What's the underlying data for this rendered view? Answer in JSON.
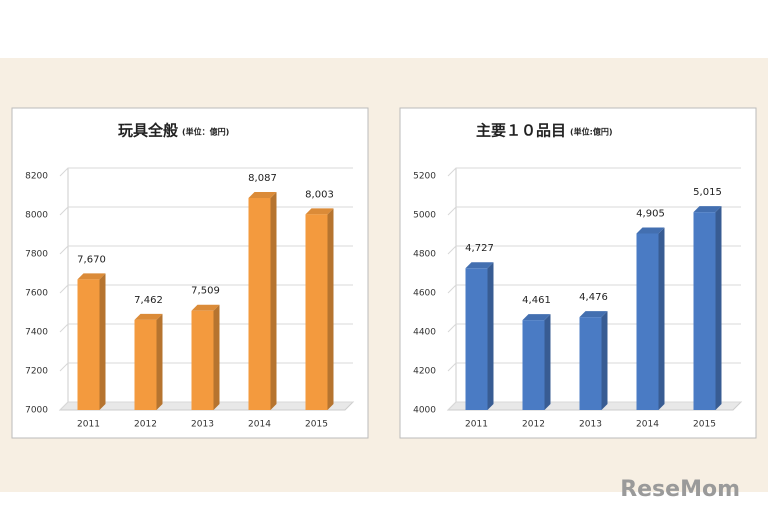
{
  "chart_data": [
    {
      "type": "bar",
      "title": "玩具全般",
      "subtitle": "(単位：億円)",
      "categories": [
        "2011",
        "2012",
        "2013",
        "2014",
        "2015"
      ],
      "values": [
        7670,
        7462,
        7509,
        8087,
        8003
      ],
      "value_labels": [
        "7,670",
        "7,462",
        "7,509",
        "8,087",
        "8,003"
      ],
      "color": "#f39a3e",
      "ylim": [
        7000,
        8200
      ],
      "yticks": [
        7000,
        7200,
        7400,
        7600,
        7800,
        8000,
        8200
      ],
      "grid": true
    },
    {
      "type": "bar",
      "title": "主要１０品目",
      "subtitle": "(単位:億円)",
      "categories": [
        "2011",
        "2012",
        "2013",
        "2014",
        "2015"
      ],
      "values": [
        4727,
        4461,
        4476,
        4905,
        5015
      ],
      "value_labels": [
        "4,727",
        "4,461",
        "4,476",
        "4,905",
        "5,015"
      ],
      "color": "#4a7bc4",
      "ylim": [
        4000,
        5200
      ],
      "yticks": [
        4000,
        4200,
        4400,
        4600,
        4800,
        5000,
        5200
      ],
      "grid": true
    }
  ],
  "watermark": "ReseMom"
}
